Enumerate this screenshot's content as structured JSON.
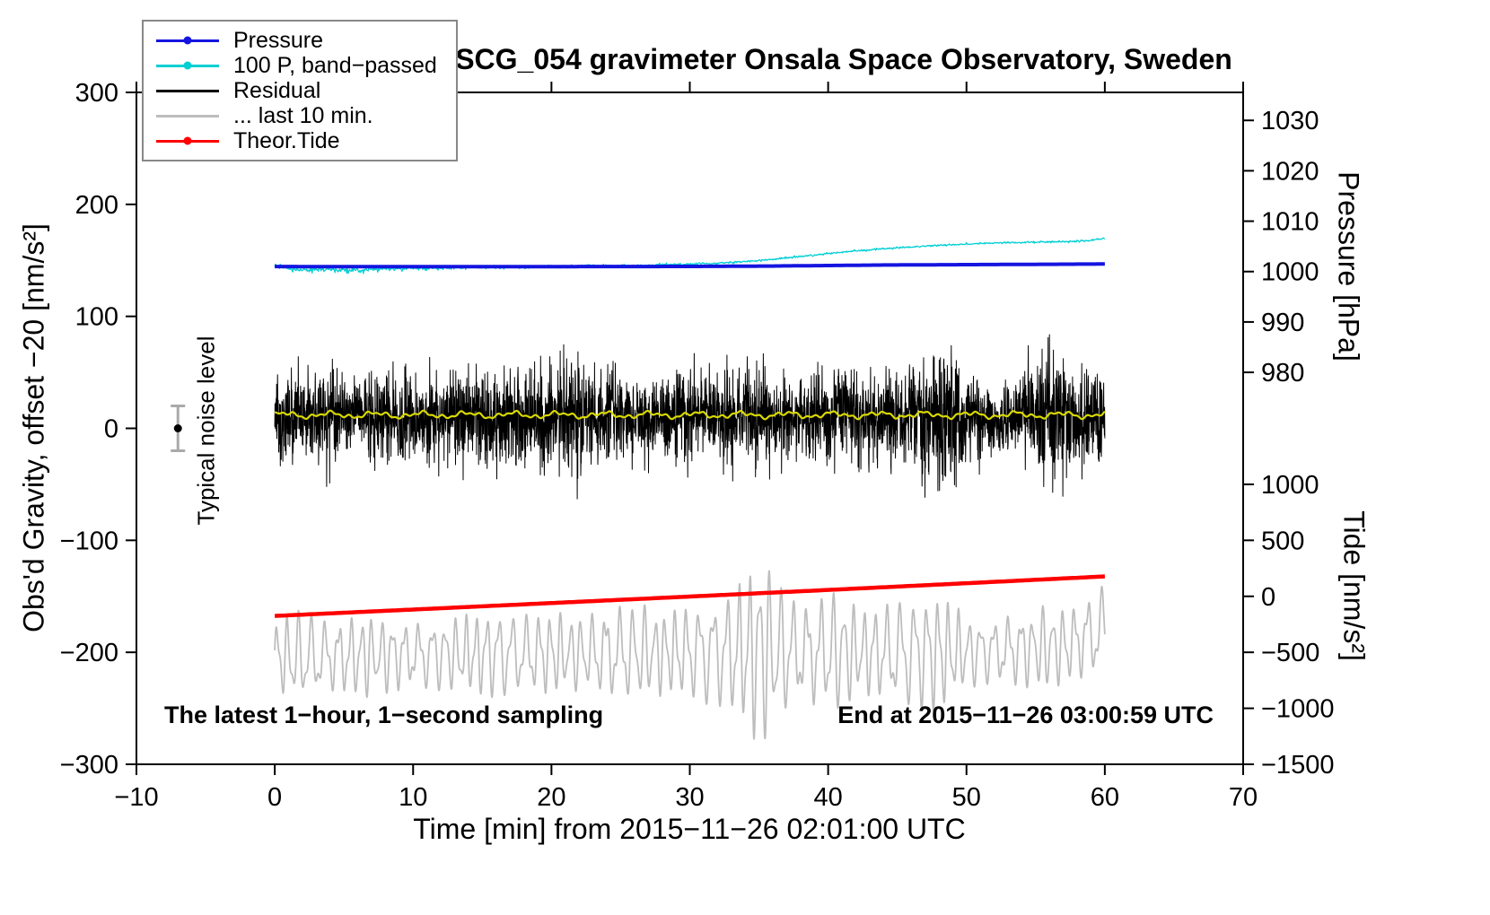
{
  "chart_data": {
    "type": "line",
    "title": "SCG_054 gravimeter Onsala Space Observatory, Sweden",
    "seed": 20151126,
    "axes": {
      "x": {
        "label": "Time [min] from 2015−11−26 02:01:00 UTC",
        "min": -10,
        "max": 70,
        "ticks": [
          -10,
          0,
          10,
          20,
          30,
          40,
          50,
          60,
          70
        ]
      },
      "left": {
        "label": "Obs'd Gravity, offset −20 [nm/s²]",
        "min": -300,
        "max": 300,
        "ticks": [
          -300,
          -200,
          -100,
          0,
          100,
          200,
          300
        ]
      },
      "pressure": {
        "label": "Pressure [hPa]",
        "ticks": [
          1030,
          1020,
          1010,
          1000,
          990,
          980
        ],
        "ref_value": 1000,
        "ref_left": 140,
        "left_per_hpa": 4.5
      },
      "tide": {
        "label": "Tide [nm/s²]",
        "ticks": [
          1000,
          500,
          0,
          -500,
          -1000,
          -1500
        ],
        "left_per_unit": 0.1,
        "left_offset": -150
      }
    },
    "annotations": {
      "noise_label": "Typical noise level",
      "sampling": "The latest 1−hour, 1−second sampling",
      "end": "End at 2015−11−26 03:00:59 UTC"
    },
    "noise_marker": {
      "x": -7,
      "value": 0,
      "error": 20
    },
    "render_order": [
      1,
      0,
      2,
      5,
      3,
      4
    ],
    "series": [
      {
        "id": "pressure",
        "name": "Pressure",
        "color": "#1515e0",
        "width": 4,
        "marker": true,
        "axis": "pressure",
        "gen": "anchors",
        "x": [
          0,
          5,
          10,
          15,
          20,
          25,
          30,
          33,
          36,
          40,
          44,
          48,
          52,
          56,
          60
        ],
        "y": [
          1001.0,
          1000.98,
          1000.97,
          1000.97,
          1000.99,
          1001.0,
          1001.02,
          1001.05,
          1001.1,
          1001.2,
          1001.3,
          1001.35,
          1001.4,
          1001.45,
          1001.5
        ]
      },
      {
        "id": "pressure-bandpassed",
        "name": "100 P, band−passed",
        "color": "#00cfd4",
        "width": 1.3,
        "marker": true,
        "axis": "left",
        "gen": "noisy_anchors",
        "x": [
          0,
          1,
          2,
          3,
          5,
          7,
          9,
          11,
          13,
          15,
          17,
          20,
          23,
          26,
          28,
          30,
          32,
          34,
          36,
          38,
          40,
          42,
          44,
          46,
          48,
          50,
          52,
          54,
          56,
          58,
          59,
          60
        ],
        "y": [
          145,
          143,
          141.5,
          142,
          141.5,
          142,
          142.5,
          143,
          143.5,
          144,
          144,
          144.5,
          145,
          145.5,
          146,
          146.5,
          147.5,
          149,
          151,
          153.5,
          156,
          158.5,
          160.5,
          162,
          163.5,
          164.5,
          165.5,
          166,
          166.5,
          167,
          168,
          170
        ],
        "env_x": [
          0,
          3,
          6,
          10,
          15,
          20,
          25,
          30,
          35,
          40,
          50,
          60
        ],
        "env": [
          2.5,
          3,
          2.5,
          2,
          1.8,
          1.5,
          1.5,
          1.2,
          1.0,
          0.9,
          0.8,
          1.0
        ]
      },
      {
        "id": "residual",
        "name": "Residual",
        "color": "#000000",
        "width": 1,
        "marker": false,
        "axis": "left",
        "gen": "noise_band",
        "base": 10,
        "env_x": [
          0,
          2,
          4,
          6,
          8,
          10,
          12,
          14,
          16,
          18,
          20,
          22,
          24,
          26,
          28,
          30,
          32,
          34,
          36,
          38,
          40,
          42,
          44,
          46,
          48,
          50,
          52,
          54,
          56,
          58,
          60
        ],
        "env": [
          48,
          52,
          60,
          50,
          62,
          52,
          50,
          60,
          64,
          55,
          62,
          70,
          58,
          46,
          52,
          56,
          50,
          58,
          52,
          46,
          62,
          52,
          56,
          50,
          95,
          56,
          46,
          52,
          90,
          55,
          58
        ]
      },
      {
        "id": "residual-last-10-min",
        "name": "... last 10 min.",
        "color": "#bdbdbd",
        "width": 1.8,
        "marker": false,
        "axis": "left",
        "gen": "oscillation",
        "x": [
          0,
          10,
          30,
          50,
          57,
          60
        ],
        "y": [
          -205,
          -202,
          -200,
          -200,
          -195,
          -180
        ],
        "env_x": [
          0,
          2,
          4,
          6,
          8,
          10,
          12,
          14,
          16,
          18,
          20,
          22,
          24,
          26,
          28,
          30,
          32,
          33,
          34,
          35,
          36,
          37,
          38,
          40,
          41,
          42,
          44,
          46,
          48,
          50,
          52,
          54,
          56,
          58,
          60
        ],
        "env": [
          35,
          42,
          30,
          38,
          34,
          28,
          32,
          36,
          40,
          34,
          38,
          33,
          38,
          44,
          38,
          42,
          48,
          55,
          70,
          88,
          72,
          55,
          42,
          52,
          58,
          40,
          42,
          50,
          55,
          32,
          28,
          33,
          38,
          33,
          40
        ]
      },
      {
        "id": "theor-tide",
        "name": "Theor.Tide",
        "color": "#ff0000",
        "width": 4.5,
        "marker": true,
        "axis": "tide",
        "gen": "anchors",
        "x": [
          0,
          10,
          20,
          30,
          40,
          50,
          60
        ],
        "y": [
          -175,
          -118,
          -60,
          -2,
          57,
          117,
          178
        ]
      },
      {
        "id": "residual-mean",
        "name": "",
        "color": "#d8d800",
        "width": 2.2,
        "marker": false,
        "axis": "left",
        "gen": "harmonics",
        "base": 12,
        "harmonics": [
          [
            2.0,
            1.9,
            0.3
          ],
          [
            1.1,
            4.7,
            1.2
          ],
          [
            0.9,
            9.3,
            2.1
          ]
        ]
      }
    ]
  }
}
